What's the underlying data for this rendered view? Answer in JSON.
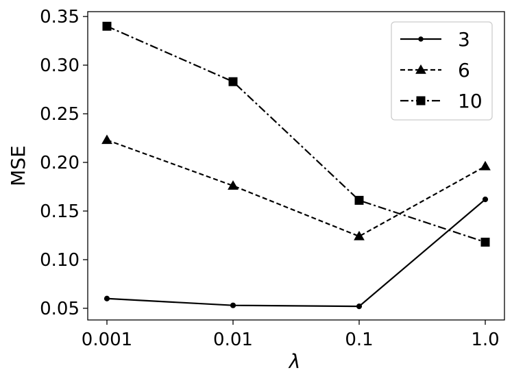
{
  "chart_data": {
    "type": "line",
    "title": "",
    "xlabel": "λ",
    "ylabel": "MSE",
    "x_scale": "log",
    "categories": [
      "0.001",
      "0.01",
      "0.1",
      "1.0"
    ],
    "x": [
      0.001,
      0.01,
      0.1,
      1.0
    ],
    "ylim": [
      0.038,
      0.355
    ],
    "yticks": [
      "0.05",
      "0.10",
      "0.15",
      "0.20",
      "0.25",
      "0.30",
      "0.35"
    ],
    "ytick_values": [
      0.05,
      0.1,
      0.15,
      0.2,
      0.25,
      0.3,
      0.35
    ],
    "grid": false,
    "legend_position": "top-right",
    "series": [
      {
        "name": "3",
        "values": [
          0.06,
          0.053,
          0.052,
          0.162
        ],
        "linestyle": "solid",
        "marker": "circle",
        "color": "#000000"
      },
      {
        "name": "6",
        "values": [
          0.223,
          0.176,
          0.124,
          0.196
        ],
        "linestyle": "dashed",
        "marker": "triangle",
        "color": "#000000"
      },
      {
        "name": "10",
        "values": [
          0.34,
          0.283,
          0.161,
          0.118
        ],
        "linestyle": "dashdot",
        "marker": "square",
        "color": "#000000"
      }
    ]
  }
}
